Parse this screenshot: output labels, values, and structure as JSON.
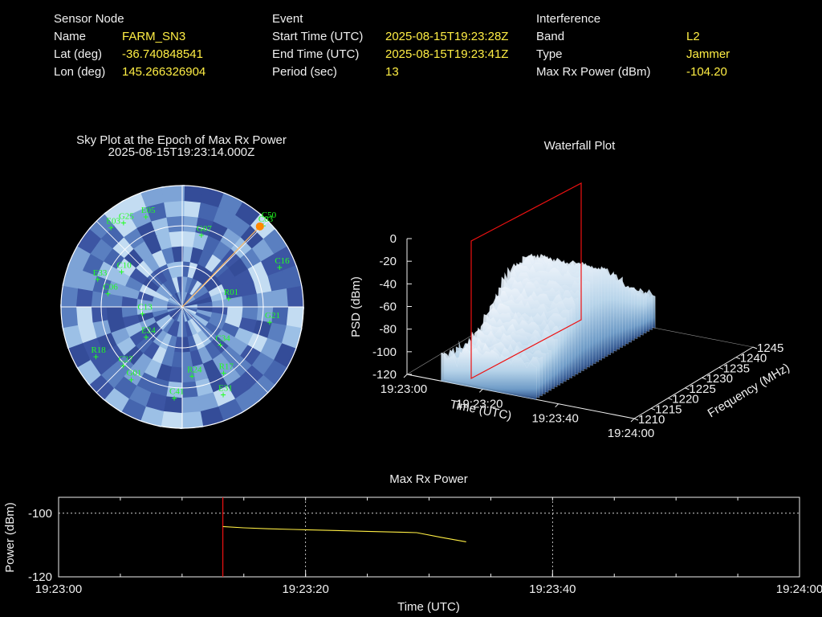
{
  "header": {
    "sensor": {
      "heading": "Sensor Node",
      "name_label": "Name",
      "name_value": "FARM_SN3",
      "lat_label": "Lat (deg)",
      "lat_value": "-36.740848541",
      "lon_label": "Lon (deg)",
      "lon_value": "145.266326904"
    },
    "event": {
      "heading": "Event",
      "start_label": "Start Time (UTC)",
      "start_value": "2025-08-15T19:23:28Z",
      "end_label": "End Time (UTC)",
      "end_value": "2025-08-15T19:23:41Z",
      "period_label": "Period (sec)",
      "period_value": "13"
    },
    "interference": {
      "heading": "Interference",
      "band_label": "Band",
      "band_value": "L2",
      "type_label": "Type",
      "type_value": "Jammer",
      "maxrx_label": "Max Rx Power (dBm)",
      "maxrx_value": "-104.20"
    }
  },
  "colors": {
    "label": "#f0f0f0",
    "value": "#ffee44",
    "sat": "#22ff22",
    "marker": "#ff0000",
    "jammer": "#ff8800"
  },
  "chart_data": [
    {
      "type": "scatter",
      "chart": "sky_plot",
      "title": "Sky Plot at the Epoch of Max Rx Power",
      "subtitle": "2025-08-15T19:23:14.000Z",
      "satellites": [
        {
          "id": "E05",
          "az": 338,
          "el": 18
        },
        {
          "id": "G25",
          "az": 325,
          "el": 14
        },
        {
          "id": "E03",
          "az": 318,
          "el": 11
        },
        {
          "id": "G07",
          "az": 15,
          "el": 35
        },
        {
          "id": "C03",
          "az": 45,
          "el": 5
        },
        {
          "id": "C16",
          "az": 68,
          "el": 12
        },
        {
          "id": "G21",
          "az": 100,
          "el": 24
        },
        {
          "id": "R24",
          "az": 172,
          "el": 38
        },
        {
          "id": "C41",
          "az": 185,
          "el": 22
        },
        {
          "id": "G01",
          "az": 215,
          "el": 24
        },
        {
          "id": "R18",
          "az": 240,
          "el": 16
        },
        {
          "id": "E33",
          "az": 288,
          "el": 24
        },
        {
          "id": "C06",
          "az": 280,
          "el": 34
        },
        {
          "id": "C13",
          "az": 260,
          "el": 60
        },
        {
          "id": "R01",
          "az": 80,
          "el": 55
        },
        {
          "id": "C34",
          "az": 135,
          "el": 50
        },
        {
          "id": "C10",
          "az": 300,
          "el": 38
        },
        {
          "id": "E24",
          "az": 230,
          "el": 55
        },
        {
          "id": "E31",
          "az": 155,
          "el": 18
        },
        {
          "id": "R17",
          "az": 148,
          "el": 32
        },
        {
          "id": "C27",
          "az": 225,
          "el": 28
        }
      ],
      "interference_source": {
        "id": "C50",
        "az": 44,
        "el": 7
      }
    },
    {
      "type": "surface",
      "chart": "waterfall",
      "title": "Waterfall Plot",
      "xlabel": "Time (UTC)",
      "ylabel": "Frequency (MHz)",
      "zlabel": "PSD (dBm)",
      "x_ticks": [
        "19:23:00",
        "19:23:20",
        "19:23:40",
        "19:24:00"
      ],
      "y_ticks": [
        "1210",
        "1215",
        "1220",
        "1225",
        "1230",
        "1235",
        "1240",
        "1245"
      ],
      "z_ticks": [
        "0",
        "-20",
        "-40",
        "-60",
        "-80",
        "-100",
        "-120"
      ],
      "zlim": [
        -120,
        0
      ],
      "epoch_marker_time": "19:23:14"
    },
    {
      "type": "line",
      "chart": "max_rx_power",
      "title": "Max Rx Power",
      "xlabel": "Time (UTC)",
      "ylabel": "Power (dBm)",
      "x_ticks": [
        "19:23:00",
        "19:23:20",
        "19:23:40",
        "19:24:00"
      ],
      "y_ticks": [
        "-100",
        "-120"
      ],
      "xlim": [
        0,
        60
      ],
      "ylim": [
        -120,
        -95
      ],
      "marker_time": 13.3,
      "series": [
        {
          "x": [
            13.3,
            15,
            17,
            19,
            21,
            23,
            25,
            27,
            29,
            31,
            33
          ],
          "y": [
            -104.2,
            -104.6,
            -104.9,
            -105.1,
            -105.3,
            -105.5,
            -105.7,
            -105.9,
            -106.1,
            -107.6,
            -109.0
          ]
        }
      ]
    }
  ]
}
